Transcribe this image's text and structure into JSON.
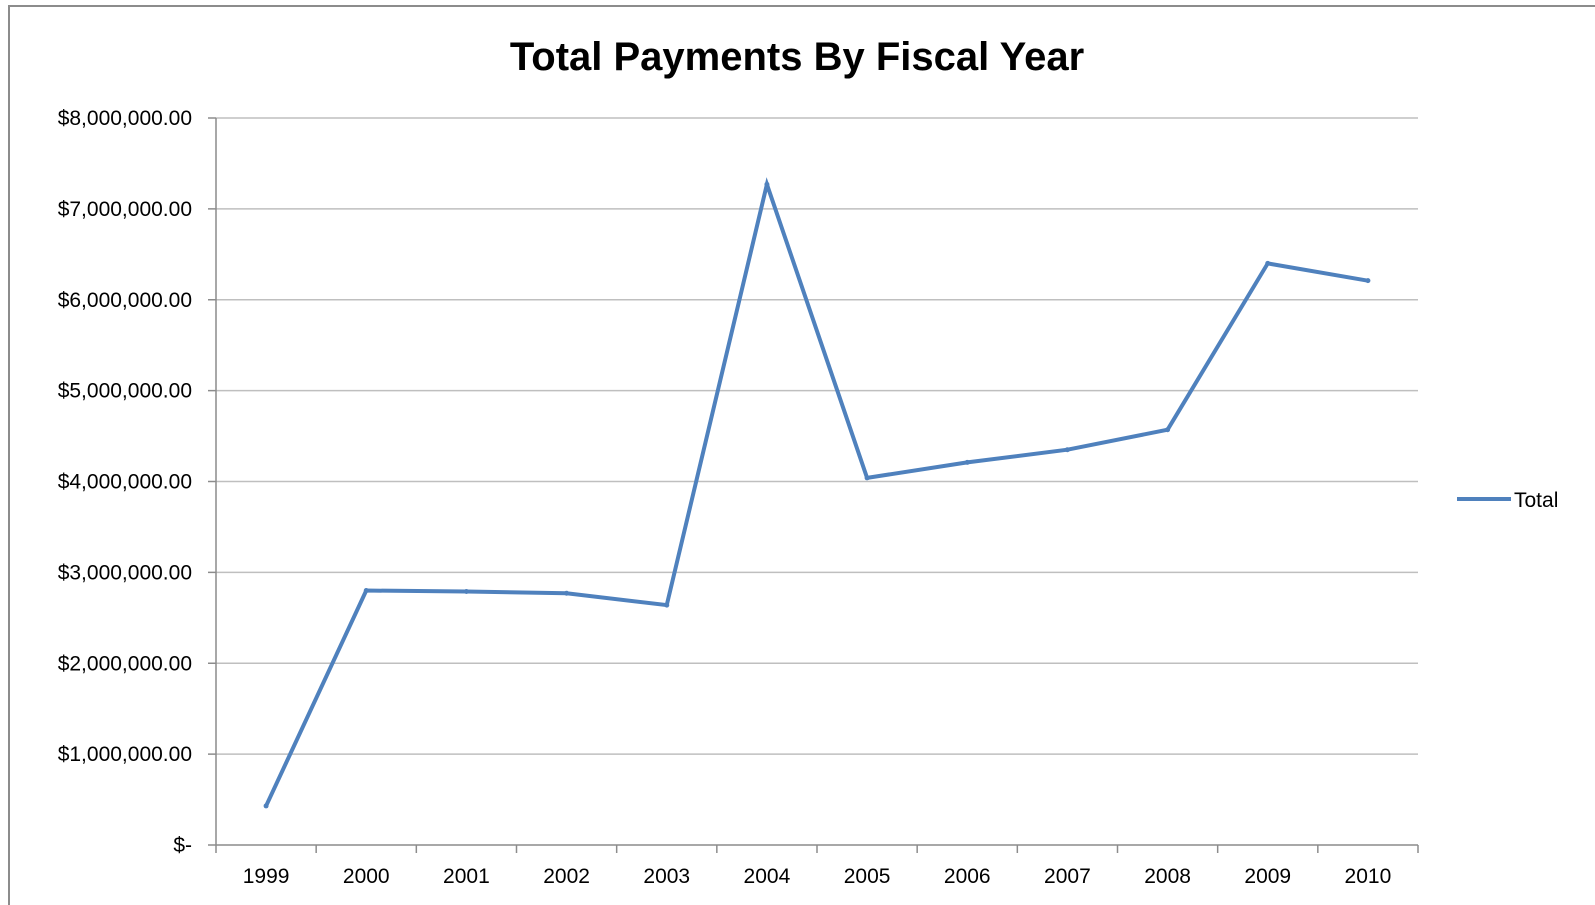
{
  "chart_data": {
    "type": "line",
    "title": "Total Payments By Fiscal Year",
    "xlabel": "",
    "ylabel": "",
    "categories": [
      "1999",
      "2000",
      "2001",
      "2002",
      "2003",
      "2004",
      "2005",
      "2006",
      "2007",
      "2008",
      "2009",
      "2010"
    ],
    "series": [
      {
        "name": "Total",
        "color": "#4F81BD",
        "values": [
          430000,
          2800000,
          2790000,
          2770000,
          2640000,
          7270000,
          4040000,
          4210000,
          4350000,
          4570000,
          6400000,
          6210000
        ]
      }
    ],
    "ylim": [
      0,
      8000000
    ],
    "yticks": [
      {
        "value": 0,
        "label": "$-"
      },
      {
        "value": 1000000,
        "label": "$1,000,000.00"
      },
      {
        "value": 2000000,
        "label": "$2,000,000.00"
      },
      {
        "value": 3000000,
        "label": "$3,000,000.00"
      },
      {
        "value": 4000000,
        "label": "$4,000,000.00"
      },
      {
        "value": 5000000,
        "label": "$5,000,000.00"
      },
      {
        "value": 6000000,
        "label": "$6,000,000.00"
      },
      {
        "value": 7000000,
        "label": "$7,000,000.00"
      },
      {
        "value": 8000000,
        "label": "$8,000,000.00"
      }
    ],
    "grid": true,
    "gridline_color": "#bfbfbf",
    "legend_position": "right"
  }
}
